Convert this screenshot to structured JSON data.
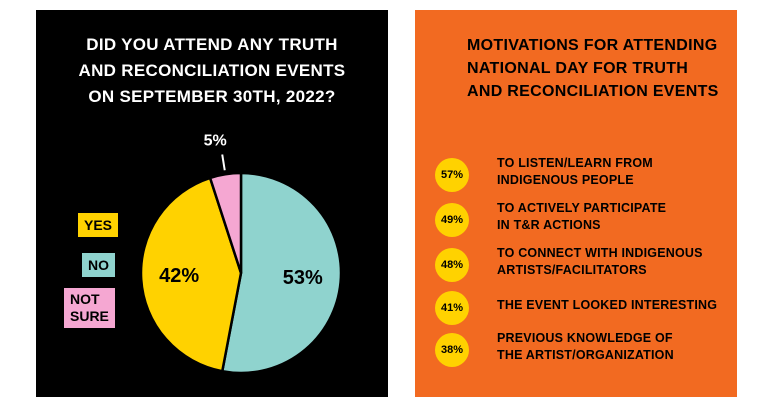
{
  "left": {
    "title_lines": [
      "DID YOU ATTEND ANY TRUTH",
      "AND RECONCILIATION EVENTS",
      "ON SEPTEMBER 30TH, 2022?"
    ],
    "legend": [
      "YES",
      "NO",
      "NOT SURE"
    ]
  },
  "right": {
    "title_lines": [
      "MOTIVATIONS FOR ATTENDING",
      "NATIONAL DAY FOR TRUTH",
      "AND RECONCILIATION EVENTS"
    ],
    "items": [
      {
        "percent": "57%",
        "line1": "TO LISTEN/LEARN FROM",
        "line2": "INDIGENOUS PEOPLE"
      },
      {
        "percent": "49%",
        "line1": "TO ACTIVELY PARTICIPATE",
        "line2": "IN T&R ACTIONS"
      },
      {
        "percent": "48%",
        "line1": "TO CONNECT WITH INDIGENOUS",
        "line2": "ARTISTS/FACILITATORS"
      },
      {
        "percent": "41%",
        "line1": "THE EVENT LOOKED INTERESTING",
        "line2": ""
      },
      {
        "percent": "38%",
        "line1": "PREVIOUS KNOWLEDGE OF",
        "line2": "THE ARTIST/ORGANIZATION"
      }
    ]
  },
  "colors": {
    "left_bg": "#000000",
    "right_bg": "#f26a21",
    "yes": "#ffd200",
    "no": "#8fd3ce",
    "not_sure": "#f5a7d2",
    "badge": "#ffd200"
  },
  "chart_data": [
    {
      "type": "pie",
      "title": "DID YOU ATTEND ANY TRUTH AND RECONCILIATION EVENTS ON SEPTEMBER 30TH, 2022?",
      "categories": [
        "YES",
        "NO",
        "NOT SURE"
      ],
      "values": [
        42,
        53,
        5
      ],
      "labels": [
        "42%",
        "53%",
        "5%"
      ],
      "colors": [
        "#ffd200",
        "#8fd3ce",
        "#f5a7d2"
      ],
      "legend_position": "left"
    },
    {
      "type": "table",
      "title": "MOTIVATIONS FOR ATTENDING NATIONAL DAY FOR TRUTH AND RECONCILIATION EVENTS",
      "categories": [
        "TO LISTEN/LEARN FROM INDIGENOUS PEOPLE",
        "TO ACTIVELY PARTICIPATE IN T&R ACTIONS",
        "TO CONNECT WITH INDIGENOUS ARTISTS/FACILITATORS",
        "THE EVENT LOOKED INTERESTING",
        "PREVIOUS KNOWLEDGE OF THE ARTIST/ORGANIZATION"
      ],
      "values": [
        57,
        49,
        48,
        41,
        38
      ]
    }
  ]
}
